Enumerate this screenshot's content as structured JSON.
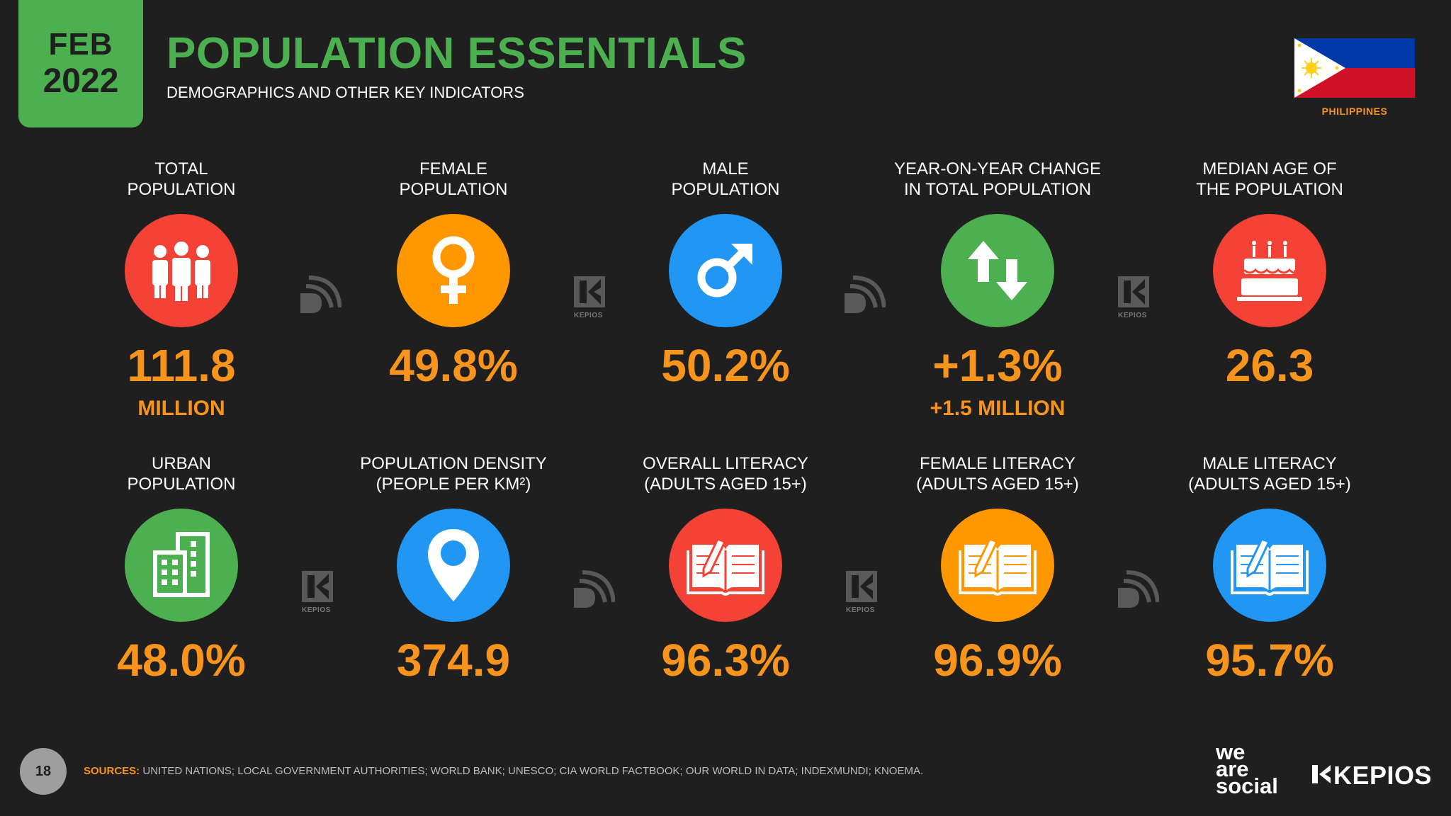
{
  "header": {
    "month": "FEB",
    "year": "2022",
    "title": "POPULATION ESSENTIALS",
    "subtitle": "DEMOGRAPHICS AND OTHER KEY INDICATORS",
    "country": "PHILIPPINES"
  },
  "cards": [
    {
      "label1": "TOTAL",
      "label2": "POPULATION",
      "value": "111.8",
      "sub": "MILLION",
      "icon": "people-icon",
      "color": "#f44336"
    },
    {
      "label1": "FEMALE",
      "label2": "POPULATION",
      "value": "49.8%",
      "sub": "",
      "icon": "female-symbol-icon",
      "color": "#ff9800"
    },
    {
      "label1": "MALE",
      "label2": "POPULATION",
      "value": "50.2%",
      "sub": "",
      "icon": "male-symbol-icon",
      "color": "#2196f3"
    },
    {
      "label1": "YEAR-ON-YEAR CHANGE",
      "label2": "IN TOTAL POPULATION",
      "value": "+1.3%",
      "sub": "+1.5 MILLION",
      "icon": "up-down-arrows-icon",
      "color": "#4caf50"
    },
    {
      "label1": "MEDIAN AGE OF",
      "label2": "THE POPULATION",
      "value": "26.3",
      "sub": "",
      "icon": "birthday-cake-icon",
      "color": "#f44336"
    },
    {
      "label1": "URBAN",
      "label2": "POPULATION",
      "value": "48.0%",
      "sub": "",
      "icon": "buildings-icon",
      "color": "#4caf50"
    },
    {
      "label1": "POPULATION DENSITY",
      "label2": "(PEOPLE PER KM²)",
      "value": "374.9",
      "sub": "",
      "icon": "map-pin-icon",
      "color": "#2196f3"
    },
    {
      "label1": "OVERALL LITERACY",
      "label2": "(ADULTS AGED 15+)",
      "value": "96.3%",
      "sub": "",
      "icon": "book-pencil-icon",
      "color": "#f44336"
    },
    {
      "label1": "FEMALE LITERACY",
      "label2": "(ADULTS AGED 15+)",
      "value": "96.9%",
      "sub": "",
      "icon": "book-pencil-icon",
      "color": "#ff9800"
    },
    {
      "label1": "MALE LITERACY",
      "label2": "(ADULTS AGED 15+)",
      "value": "95.7%",
      "sub": "",
      "icon": "book-pencil-icon",
      "color": "#2196f3"
    }
  ],
  "watermarks": {
    "kepios_label": "KEPIOS"
  },
  "footer": {
    "page_number": "18",
    "sources_label": "SOURCES:",
    "sources_text": "UNITED NATIONS; LOCAL GOVERNMENT AUTHORITIES; WORLD BANK; UNESCO; CIA WORLD FACTBOOK; OUR WORLD IN DATA; INDEXMUNDI; KNOEMA.",
    "brand1_line1": "we",
    "brand1_line2": "are",
    "brand1_line3": "social",
    "brand2": "KEPIOS"
  }
}
